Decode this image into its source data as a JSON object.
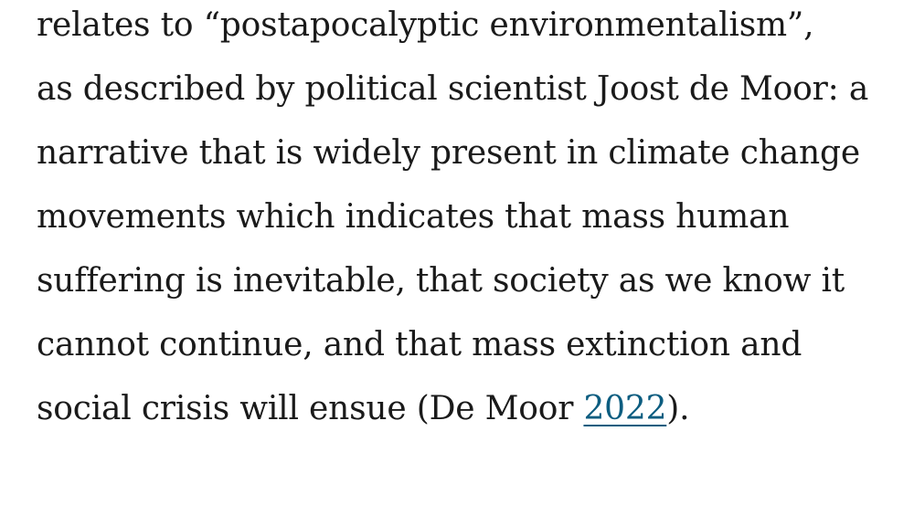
{
  "article": {
    "paragraph": {
      "lines": [
        "relates to “postapocalyptic environmentalism”,",
        "as described by political scientist Joost de Moor: a",
        "narrative that is widely present in climate change",
        "movements which indicates that mass human",
        "suffering is inevitable, that society as we know it",
        "cannot continue, and that mass extinction and"
      ],
      "last_line_before": "social crisis will ensue (De Moor ",
      "citation_year": "2022",
      "last_line_after": ")."
    }
  }
}
